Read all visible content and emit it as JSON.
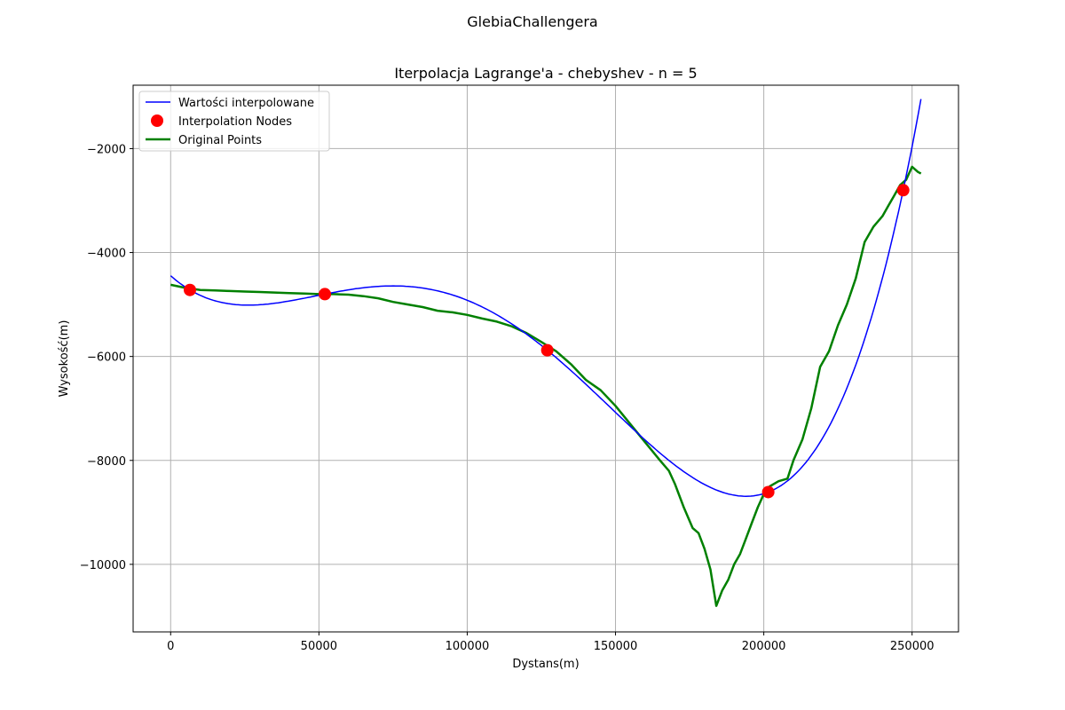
{
  "figure": {
    "suptitle": "GlebiaChallengera"
  },
  "chart_data": {
    "type": "line",
    "title": "Iterpolacja Lagrange'a - chebyshev - n = 5",
    "xlabel": "Dystans(m)",
    "ylabel": "Wysokość(m)",
    "xlim": [
      -12650,
      265650
    ],
    "ylim": [
      -11300,
      -780
    ],
    "xticks": [
      0,
      50000,
      100000,
      150000,
      200000,
      250000
    ],
    "xtick_labels": [
      "0",
      "50000",
      "100000",
      "150000",
      "200000",
      "250000"
    ],
    "yticks": [
      -10000,
      -8000,
      -6000,
      -4000,
      -2000
    ],
    "ytick_labels": [
      "−10000",
      "−8000",
      "−6000",
      "−4000",
      "−2000"
    ],
    "grid": true,
    "legend_position": "upper-left",
    "colors": {
      "interpolated": "#0000ff",
      "nodes": "#ff0000",
      "original": "#008000",
      "grid": "#b0b0b0"
    },
    "series": [
      {
        "name": "Wartości interpolowane",
        "kind": "line",
        "interpolation": {
          "method": "lagrange",
          "nodes_ref": "Interpolation Nodes",
          "x_range": [
            0,
            253000
          ],
          "samples": 300
        }
      },
      {
        "name": "Interpolation Nodes",
        "kind": "scatter",
        "x": [
          6500,
          52000,
          127000,
          201500,
          247000
        ],
        "y": [
          -4720,
          -4800,
          -5880,
          -8610,
          -2800
        ]
      },
      {
        "name": "Original Points",
        "kind": "line",
        "x": [
          0,
          5000,
          10000,
          15000,
          20000,
          25000,
          30000,
          35000,
          40000,
          45000,
          50000,
          55000,
          60000,
          65000,
          70000,
          75000,
          80000,
          85000,
          90000,
          95000,
          100000,
          105000,
          110000,
          115000,
          120000,
          125000,
          130000,
          135000,
          140000,
          145000,
          150000,
          155000,
          160000,
          165000,
          168000,
          170000,
          173000,
          176000,
          178000,
          180000,
          182000,
          184000,
          186000,
          188000,
          190000,
          192000,
          194000,
          196000,
          198000,
          200000,
          202000,
          205000,
          208000,
          210000,
          213000,
          216000,
          219000,
          222000,
          225000,
          228000,
          231000,
          234000,
          237000,
          240000,
          242000,
          244000,
          246000,
          248000,
          250000,
          252000,
          253000
        ],
        "y": [
          -4620,
          -4680,
          -4720,
          -4730,
          -4740,
          -4750,
          -4760,
          -4770,
          -4780,
          -4790,
          -4800,
          -4800,
          -4810,
          -4840,
          -4880,
          -4950,
          -5000,
          -5050,
          -5120,
          -5150,
          -5200,
          -5270,
          -5330,
          -5420,
          -5550,
          -5720,
          -5900,
          -6150,
          -6450,
          -6650,
          -6950,
          -7300,
          -7650,
          -8000,
          -8200,
          -8450,
          -8900,
          -9300,
          -9400,
          -9700,
          -10100,
          -10800,
          -10500,
          -10300,
          -10000,
          -9800,
          -9500,
          -9200,
          -8900,
          -8650,
          -8500,
          -8400,
          -8350,
          -8000,
          -7600,
          -7000,
          -6200,
          -5900,
          -5400,
          -5000,
          -4500,
          -3800,
          -3500,
          -3300,
          -3100,
          -2900,
          -2700,
          -2600,
          -2350,
          -2450,
          -2480
        ]
      }
    ]
  }
}
